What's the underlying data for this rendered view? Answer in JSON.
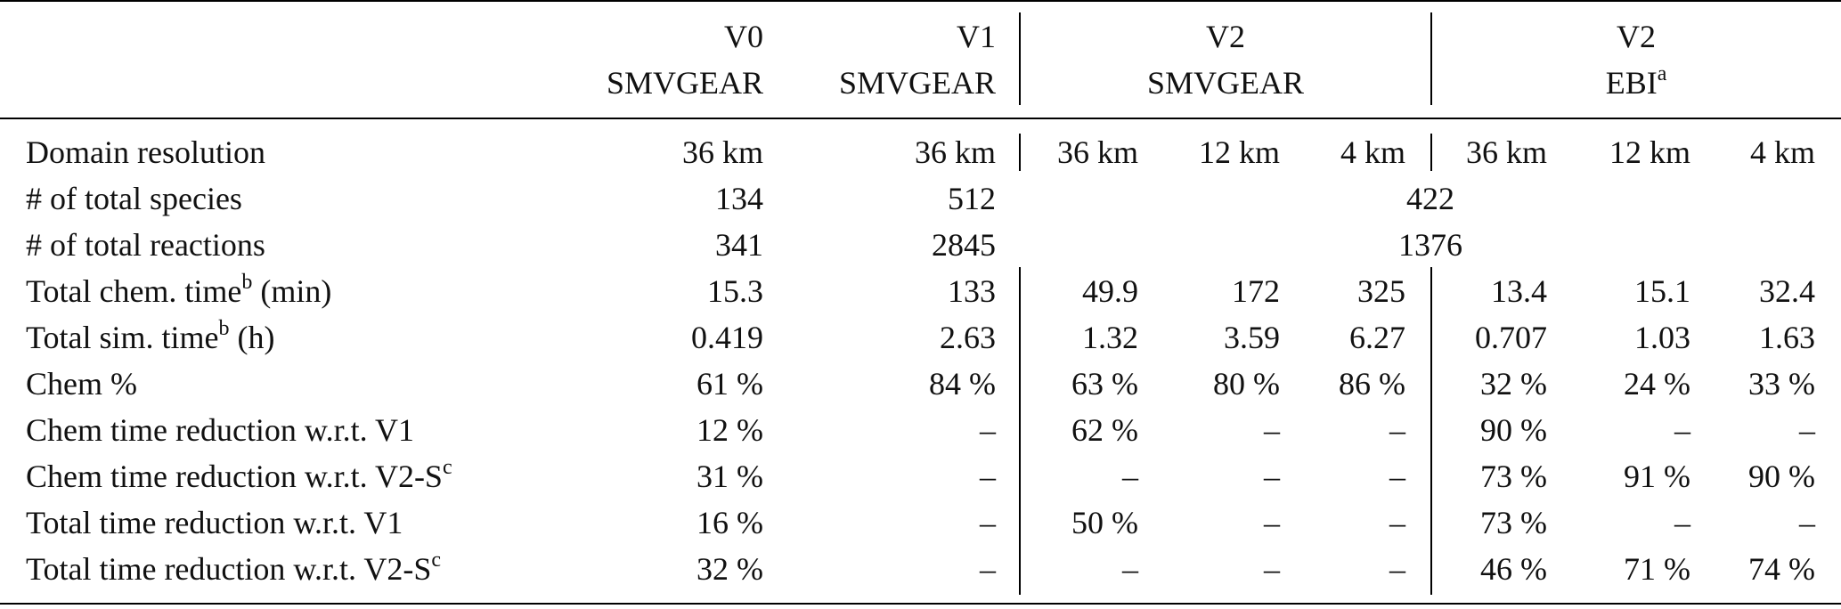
{
  "table": {
    "header": [
      {
        "line1": "V0",
        "line2": "SMVGEAR"
      },
      {
        "line1": "V1",
        "line2": "SMVGEAR"
      },
      {
        "line1": "V2",
        "line2": "SMVGEAR"
      },
      {
        "line1": "V2",
        "line2": "EBI",
        "sup": "a"
      }
    ],
    "rows": [
      {
        "label": {
          "text": "Domain resolution"
        },
        "cells": [
          "36 km",
          "36 km",
          "36 km",
          "12 km",
          "4 km",
          "36 km",
          "12 km",
          "4 km"
        ]
      },
      {
        "label": {
          "text": "# of total species"
        },
        "cells": [
          134,
          512,
          422
        ]
      },
      {
        "label": {
          "text": "# of total reactions"
        },
        "cells": [
          341,
          2845,
          1376
        ]
      },
      {
        "label": {
          "text": "Total chem. time",
          "sup": "b",
          "after": " (min)"
        },
        "cells": [
          15.3,
          133,
          49.9,
          172,
          325,
          13.4,
          15.1,
          32.4
        ]
      },
      {
        "label": {
          "text": "Total sim. time",
          "sup": "b",
          "after": " (h)"
        },
        "cells": [
          0.419,
          2.63,
          1.32,
          3.59,
          6.27,
          0.707,
          1.03,
          1.63
        ]
      },
      {
        "label": {
          "text": "Chem %"
        },
        "cells": [
          "61 %",
          "84 %",
          "63 %",
          "80 %",
          "86 %",
          "32 %",
          "24 %",
          "33 %"
        ]
      },
      {
        "label": {
          "text": "Chem time reduction w.r.t. V1"
        },
        "cells": [
          "12 %",
          "–",
          "62 %",
          "–",
          "–",
          "90 %",
          "–",
          "–"
        ]
      },
      {
        "label": {
          "text": "Chem time reduction w.r.t. V2-S",
          "sup": "c"
        },
        "cells": [
          "31 %",
          "–",
          "–",
          "–",
          "–",
          "73 %",
          "91 %",
          "90 %"
        ]
      },
      {
        "label": {
          "text": "Total time reduction w.r.t. V1"
        },
        "cells": [
          "16 %",
          "–",
          "50 %",
          "–",
          "–",
          "73 %",
          "–",
          "–"
        ]
      },
      {
        "label": {
          "text": "Total time reduction w.r.t. V2-S",
          "sup": "c"
        },
        "cells": [
          "32 %",
          "–",
          "–",
          "–",
          "–",
          "46 %",
          "71 %",
          "74 %"
        ]
      }
    ]
  }
}
